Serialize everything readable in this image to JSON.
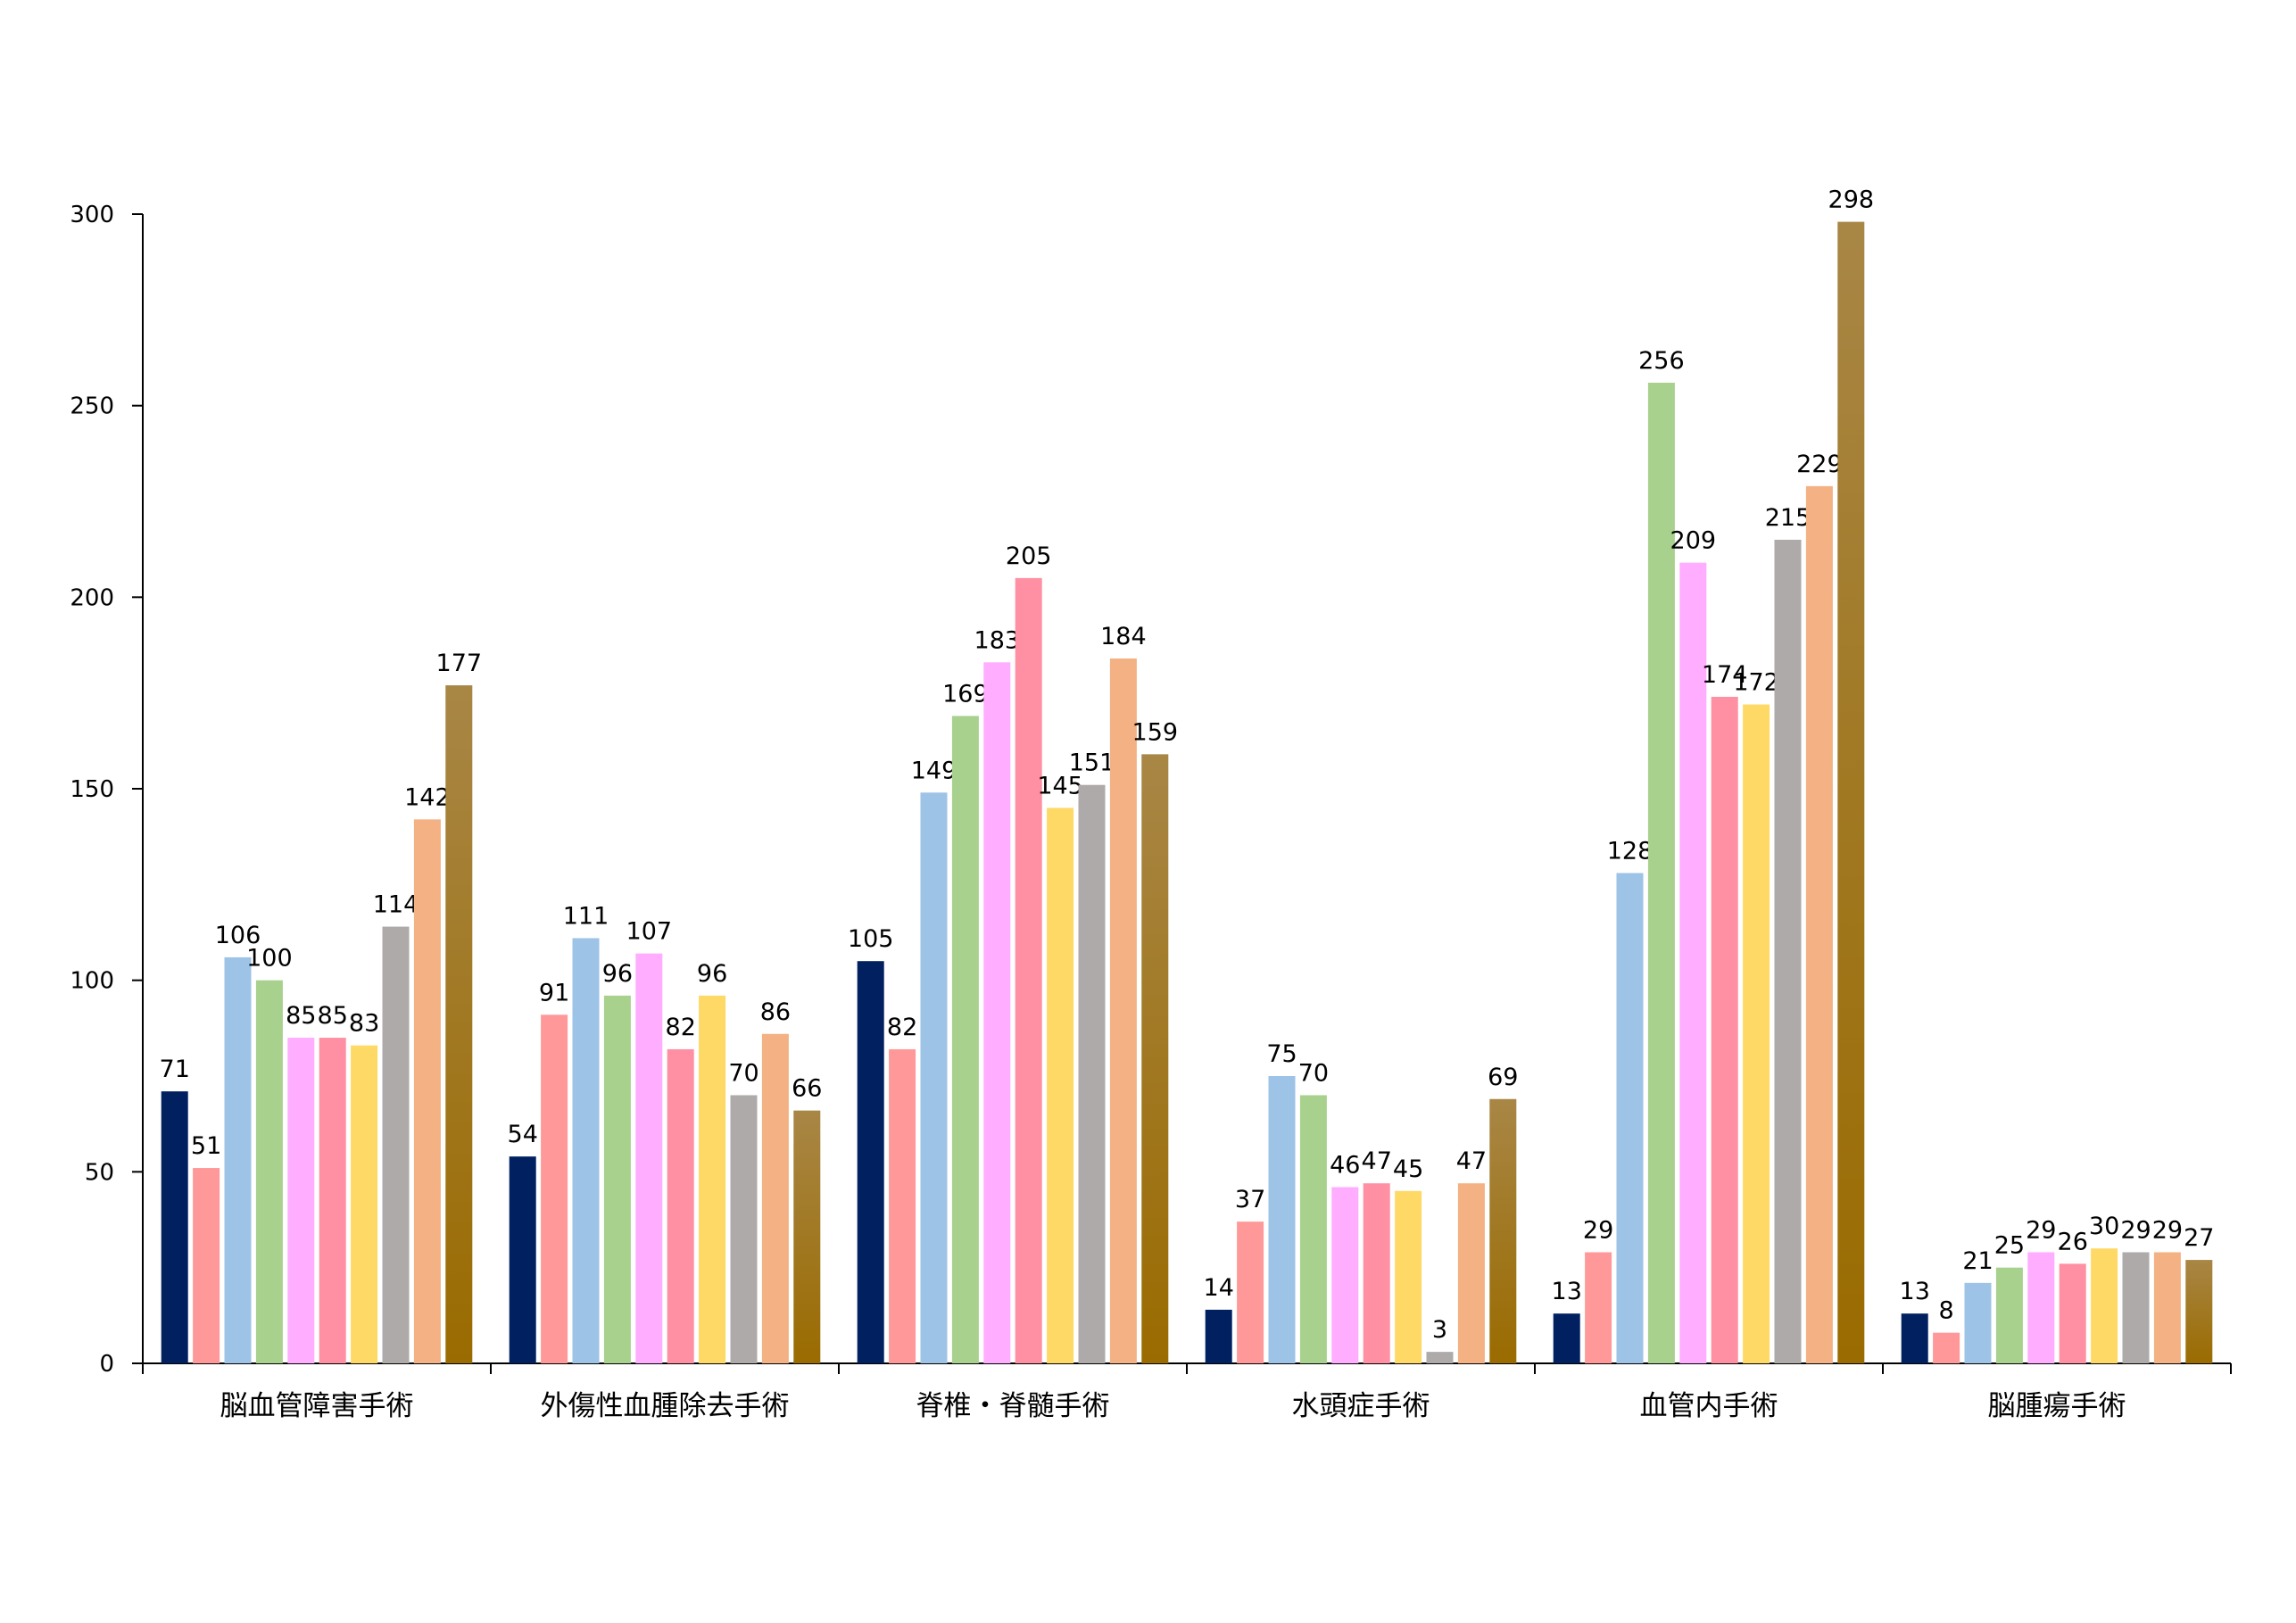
{
  "chart_data": {
    "type": "bar",
    "title": "",
    "xlabel": "",
    "ylabel": "",
    "ylim": [
      0,
      300
    ],
    "y_ticks": [
      0,
      50,
      100,
      150,
      200,
      250,
      300
    ],
    "grid": false,
    "legend": "none",
    "categories": [
      "脳血管障害手術",
      "外傷性血腫除去手術",
      "脊椎・脊髄手術",
      "水頭症手術",
      "血管内手術",
      "脳腫瘍手術"
    ],
    "series": [
      {
        "color": "#002060",
        "values": [
          71,
          54,
          105,
          14,
          13,
          13
        ]
      },
      {
        "color": "#FF9999",
        "values": [
          51,
          91,
          82,
          37,
          29,
          8
        ]
      },
      {
        "color": "#9DC3E6",
        "values": [
          106,
          111,
          149,
          75,
          128,
          21
        ]
      },
      {
        "color": "#A9D18E",
        "values": [
          100,
          96,
          169,
          70,
          256,
          25
        ]
      },
      {
        "color": "#FFADFF",
        "values": [
          85,
          107,
          183,
          46,
          209,
          29
        ]
      },
      {
        "color": "#FF8FA3",
        "values": [
          85,
          82,
          205,
          47,
          174,
          26
        ]
      },
      {
        "color": "#FFD966",
        "values": [
          83,
          96,
          145,
          45,
          172,
          30
        ]
      },
      {
        "color": "#AEAAAA",
        "values": [
          114,
          70,
          151,
          3,
          215,
          29
        ]
      },
      {
        "color": "#F4B183",
        "values": [
          142,
          86,
          184,
          47,
          229,
          29
        ]
      },
      {
        "color": "#A07A30",
        "values": [
          177,
          66,
          159,
          69,
          298,
          27
        ]
      }
    ]
  }
}
